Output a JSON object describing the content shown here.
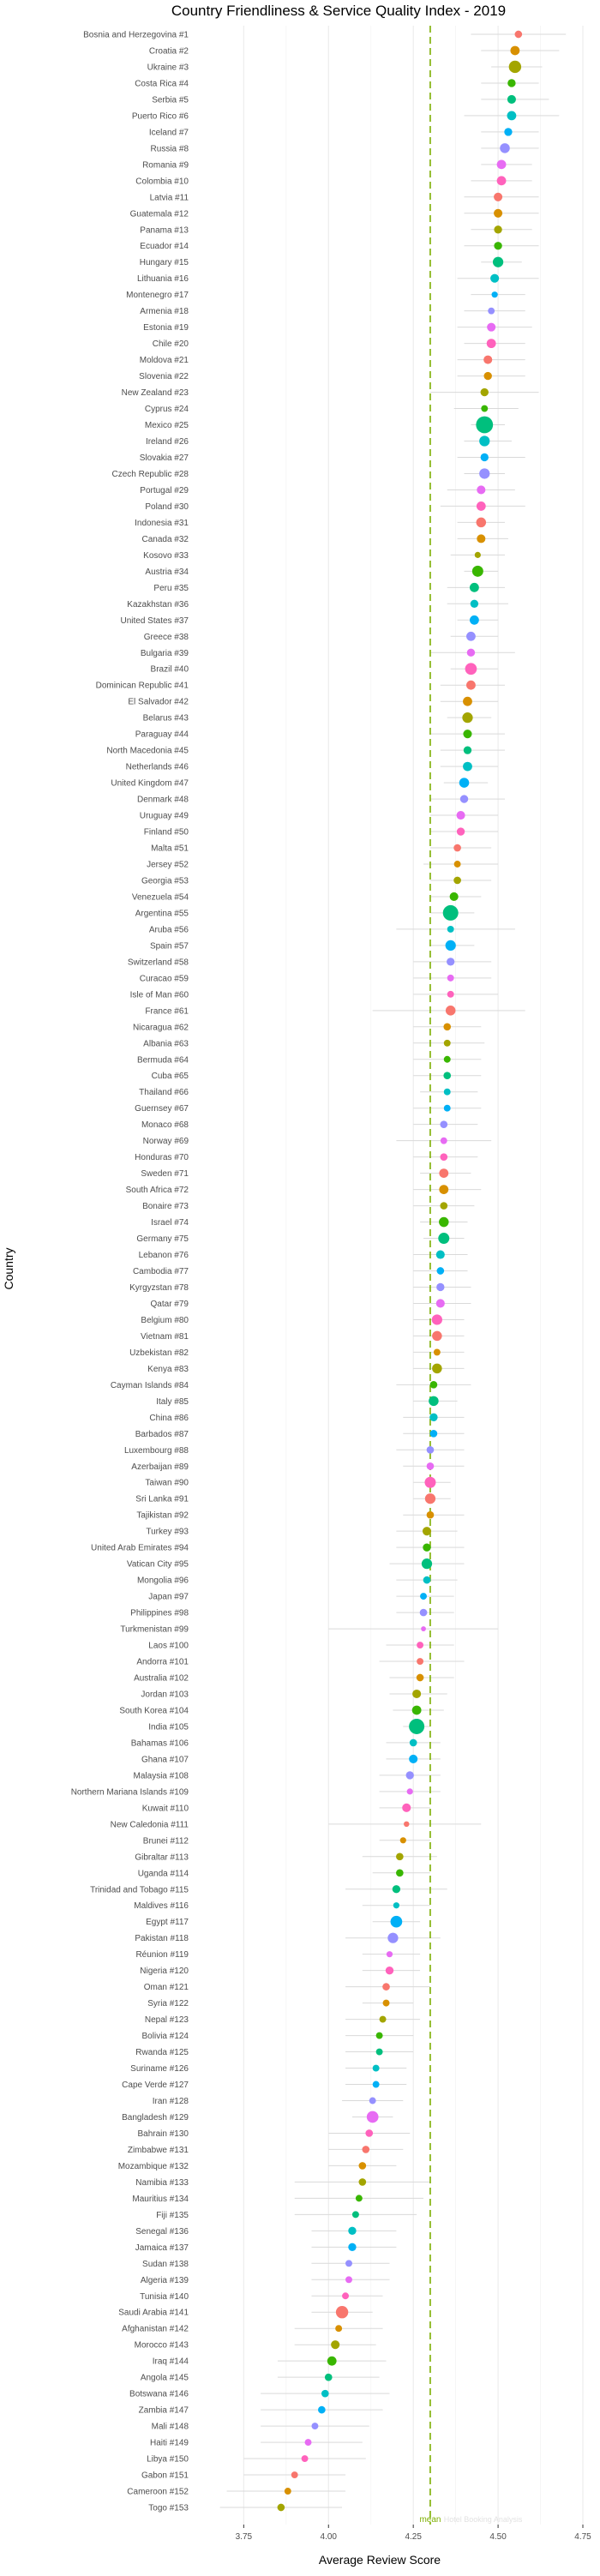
{
  "chart_data": {
    "type": "scatter",
    "title": "Country Friendliness & Service Quality Index - 2019",
    "xlabel": "Average Review Score",
    "ylabel": "Country",
    "xlim": [
      3.6,
      4.75
    ],
    "xticks": [
      3.75,
      4.0,
      4.25,
      4.5,
      4.75
    ],
    "xtick_labels": [
      "3.75",
      "4.00",
      "4.25",
      "4.50",
      "4.75"
    ],
    "grid": true,
    "mean_line": {
      "label": "mean",
      "x": 4.3,
      "color": "#7CAE00"
    },
    "watermark": "Hotel Booking Analysis",
    "palette": [
      "#F8766D",
      "#D89000",
      "#A3A500",
      "#39B600",
      "#00BF7D",
      "#00BFC4",
      "#00B0F6",
      "#9590FF",
      "#E76BF3",
      "#FF62BC"
    ],
    "countries": [
      "Bosnia and Herzegovina #1",
      "Croatia #2",
      "Ukraine #3",
      "Costa Rica #4",
      "Serbia #5",
      "Puerto Rico #6",
      "Iceland #7",
      "Russia #8",
      "Romania #9",
      "Colombia #10",
      "Latvia #11",
      "Guatemala #12",
      "Panama #13",
      "Ecuador #14",
      "Hungary #15",
      "Lithuania #16",
      "Montenegro #17",
      "Armenia #18",
      "Estonia #19",
      "Chile #20",
      "Moldova #21",
      "Slovenia #22",
      "New Zealand #23",
      "Cyprus #24",
      "Mexico #25",
      "Ireland #26",
      "Slovakia #27",
      "Czech Republic #28",
      "Portugal #29",
      "Poland #30",
      "Indonesia #31",
      "Canada #32",
      "Kosovo #33",
      "Austria #34",
      "Peru #35",
      "Kazakhstan #36",
      "United States #37",
      "Greece #38",
      "Bulgaria #39",
      "Brazil #40",
      "Dominican Republic #41",
      "El Salvador #42",
      "Belarus #43",
      "Paraguay #44",
      "North Macedonia #45",
      "Netherlands #46",
      "United Kingdom #47",
      "Denmark #48",
      "Uruguay #49",
      "Finland #50",
      "Malta #51",
      "Jersey #52",
      "Georgia #53",
      "Venezuela #54",
      "Argentina #55",
      "Aruba #56",
      "Spain #57",
      "Switzerland #58",
      "Curacao #59",
      "Isle of Man #60",
      "France #61",
      "Nicaragua #62",
      "Albania #63",
      "Bermuda #64",
      "Cuba #65",
      "Thailand #66",
      "Guernsey #67",
      "Monaco #68",
      "Norway #69",
      "Honduras #70",
      "Sweden #71",
      "South Africa #72",
      "Bonaire #73",
      "Israel #74",
      "Germany #75",
      "Lebanon #76",
      "Cambodia #77",
      "Kyrgyzstan #78",
      "Qatar #79",
      "Belgium #80",
      "Vietnam #81",
      "Uzbekistan #82",
      "Kenya #83",
      "Cayman Islands #84",
      "Italy #85",
      "China #86",
      "Barbados #87",
      "Luxembourg #88",
      "Azerbaijan #89",
      "Taiwan #90",
      "Sri Lanka #91",
      "Tajikistan #92",
      "Turkey #93",
      "United Arab Emirates #94",
      "Vatican City #95",
      "Mongolia #96",
      "Japan #97",
      "Philippines #98",
      "Turkmenistan #99",
      "Laos #100",
      "Andorra #101",
      "Australia #102",
      "Jordan #103",
      "South Korea #104",
      "India #105",
      "Bahamas #106",
      "Ghana #107",
      "Malaysia #108",
      "Northern Mariana Islands #109",
      "Kuwait #110",
      "New Caledonia #111",
      "Brunei #112",
      "Gibraltar #113",
      "Uganda #114",
      "Trinidad and Tobago #115",
      "Maldives #116",
      "Egypt #117",
      "Pakistan #118",
      "Réunion #119",
      "Nigeria #120",
      "Oman #121",
      "Syria #122",
      "Nepal #123",
      "Bolivia #124",
      "Rwanda #125",
      "Suriname #126",
      "Cape Verde #127",
      "Iran #128",
      "Bangladesh #129",
      "Bahrain #130",
      "Zimbabwe #131",
      "Mozambique #132",
      "Namibia #133",
      "Mauritius #134",
      "Fiji #135",
      "Senegal #136",
      "Jamaica #137",
      "Sudan #138",
      "Algeria #139",
      "Tunisia #140",
      "Saudi Arabia #141",
      "Afghanistan #142",
      "Morocco #143",
      "Iraq #144",
      "Angola #145",
      "Botswana #146",
      "Zambia #147",
      "Mali #148",
      "Haiti #149",
      "Libya #150",
      "Gabon #151",
      "Cameroon #152",
      "Togo #153"
    ],
    "scores": [
      4.56,
      4.55,
      4.55,
      4.54,
      4.54,
      4.54,
      4.53,
      4.52,
      4.51,
      4.51,
      4.5,
      4.5,
      4.5,
      4.5,
      4.5,
      4.49,
      4.49,
      4.48,
      4.48,
      4.48,
      4.47,
      4.47,
      4.46,
      4.46,
      4.46,
      4.46,
      4.46,
      4.46,
      4.45,
      4.45,
      4.45,
      4.45,
      4.44,
      4.44,
      4.43,
      4.43,
      4.43,
      4.42,
      4.42,
      4.42,
      4.42,
      4.41,
      4.41,
      4.41,
      4.41,
      4.41,
      4.4,
      4.4,
      4.39,
      4.39,
      4.38,
      4.38,
      4.38,
      4.37,
      4.36,
      4.36,
      4.36,
      4.36,
      4.36,
      4.36,
      4.36,
      4.35,
      4.35,
      4.35,
      4.35,
      4.35,
      4.35,
      4.34,
      4.34,
      4.34,
      4.34,
      4.34,
      4.34,
      4.34,
      4.34,
      4.33,
      4.33,
      4.33,
      4.33,
      4.32,
      4.32,
      4.32,
      4.32,
      4.31,
      4.31,
      4.31,
      4.31,
      4.3,
      4.3,
      4.3,
      4.3,
      4.3,
      4.29,
      4.29,
      4.29,
      4.29,
      4.28,
      4.28,
      4.28,
      4.27,
      4.27,
      4.27,
      4.26,
      4.26,
      4.26,
      4.25,
      4.25,
      4.24,
      4.24,
      4.23,
      4.23,
      4.22,
      4.21,
      4.21,
      4.2,
      4.2,
      4.2,
      4.19,
      4.18,
      4.18,
      4.17,
      4.17,
      4.16,
      4.15,
      4.15,
      4.14,
      4.14,
      4.13,
      4.13,
      4.12,
      4.11,
      4.1,
      4.1,
      4.09,
      4.08,
      4.07,
      4.07,
      4.06,
      4.06,
      4.05,
      4.04,
      4.03,
      4.02,
      4.01,
      4.0,
      3.99,
      3.98,
      3.96,
      3.94,
      3.93,
      3.9,
      3.88,
      3.86
    ],
    "ci_low": [
      4.42,
      4.45,
      4.48,
      4.45,
      4.45,
      4.4,
      4.45,
      4.45,
      4.45,
      4.42,
      4.4,
      4.4,
      4.42,
      4.4,
      4.45,
      4.38,
      4.42,
      4.4,
      4.38,
      4.4,
      4.38,
      4.38,
      4.3,
      4.37,
      4.42,
      4.4,
      4.38,
      4.4,
      4.35,
      4.33,
      4.38,
      4.38,
      4.36,
      4.4,
      4.35,
      4.35,
      4.38,
      4.36,
      4.3,
      4.36,
      4.33,
      4.33,
      4.35,
      4.3,
      4.33,
      4.33,
      4.34,
      4.3,
      4.3,
      4.3,
      4.3,
      4.28,
      4.3,
      4.3,
      4.3,
      4.2,
      4.3,
      4.25,
      4.25,
      4.25,
      4.13,
      4.25,
      4.25,
      4.25,
      4.25,
      4.27,
      4.25,
      4.25,
      4.2,
      4.25,
      4.27,
      4.25,
      4.25,
      4.27,
      4.28,
      4.25,
      4.25,
      4.25,
      4.25,
      4.25,
      4.25,
      4.25,
      4.25,
      4.2,
      4.25,
      4.22,
      4.22,
      4.2,
      4.22,
      4.25,
      4.25,
      4.22,
      4.2,
      4.2,
      4.18,
      4.2,
      4.2,
      4.2,
      4.0,
      4.17,
      4.15,
      4.18,
      4.18,
      4.19,
      4.22,
      4.17,
      4.17,
      4.15,
      4.15,
      4.15,
      4.0,
      4.15,
      4.1,
      4.13,
      4.05,
      4.1,
      4.13,
      4.05,
      4.1,
      4.1,
      4.05,
      4.1,
      4.05,
      4.05,
      4.05,
      4.05,
      4.05,
      4.04,
      4.07,
      4.0,
      4.0,
      4.0,
      3.9,
      3.9,
      3.9,
      3.95,
      3.95,
      3.95,
      3.95,
      3.95,
      3.95,
      3.9,
      3.9,
      3.85,
      3.85,
      3.8,
      3.8,
      3.8,
      3.8,
      3.75,
      3.75,
      3.7,
      3.68
    ],
    "ci_high": [
      4.7,
      4.68,
      4.63,
      4.62,
      4.65,
      4.68,
      4.62,
      4.62,
      4.6,
      4.6,
      4.62,
      4.62,
      4.6,
      4.62,
      4.57,
      4.62,
      4.58,
      4.58,
      4.6,
      4.58,
      4.58,
      4.58,
      4.62,
      4.56,
      4.52,
      4.54,
      4.58,
      4.52,
      4.55,
      4.58,
      4.52,
      4.53,
      4.52,
      4.5,
      4.52,
      4.53,
      4.5,
      4.5,
      4.55,
      4.5,
      4.52,
      4.5,
      4.48,
      4.52,
      4.52,
      4.5,
      4.47,
      4.52,
      4.5,
      4.5,
      4.48,
      4.5,
      4.48,
      4.45,
      4.43,
      4.55,
      4.43,
      4.48,
      4.48,
      4.5,
      4.58,
      4.45,
      4.46,
      4.45,
      4.45,
      4.44,
      4.45,
      4.44,
      4.48,
      4.44,
      4.42,
      4.45,
      4.43,
      4.41,
      4.4,
      4.41,
      4.41,
      4.42,
      4.42,
      4.4,
      4.4,
      4.4,
      4.4,
      4.42,
      4.38,
      4.4,
      4.4,
      4.4,
      4.4,
      4.36,
      4.36,
      4.4,
      4.38,
      4.4,
      4.4,
      4.38,
      4.37,
      4.37,
      4.5,
      4.37,
      4.4,
      4.37,
      4.35,
      4.34,
      4.3,
      4.33,
      4.33,
      4.33,
      4.33,
      4.3,
      4.45,
      4.3,
      4.32,
      4.3,
      4.35,
      4.3,
      4.27,
      4.33,
      4.27,
      4.27,
      4.3,
      4.25,
      4.27,
      4.25,
      4.25,
      4.23,
      4.23,
      4.22,
      4.19,
      4.24,
      4.22,
      4.2,
      4.3,
      4.28,
      4.26,
      4.2,
      4.2,
      4.18,
      4.18,
      4.16,
      4.13,
      4.16,
      4.14,
      4.17,
      4.15,
      4.18,
      4.16,
      4.12,
      4.1,
      4.11,
      4.05,
      4.05,
      4.04
    ],
    "sizes": [
      2.4,
      3.0,
      4.0,
      2.6,
      2.8,
      3.0,
      2.6,
      3.2,
      3.0,
      3.0,
      2.8,
      2.8,
      2.6,
      2.6,
      3.4,
      2.8,
      2.0,
      2.2,
      2.8,
      3.0,
      2.8,
      2.6,
      2.6,
      2.2,
      5.5,
      3.4,
      2.6,
      3.4,
      2.8,
      3.0,
      3.2,
      2.8,
      2.0,
      3.6,
      3.0,
      2.6,
      3.0,
      3.0,
      2.6,
      3.8,
      3.0,
      3.0,
      3.4,
      2.8,
      2.6,
      3.0,
      3.2,
      2.6,
      2.8,
      2.6,
      2.4,
      2.2,
      2.4,
      2.8,
      5.0,
      2.2,
      3.4,
      2.6,
      2.2,
      2.2,
      3.2,
      2.4,
      2.2,
      2.2,
      2.4,
      2.2,
      2.2,
      2.4,
      2.2,
      2.4,
      3.0,
      3.0,
      2.4,
      3.2,
      3.6,
      2.8,
      2.4,
      2.6,
      2.8,
      3.4,
      3.2,
      2.2,
      3.2,
      2.4,
      3.2,
      2.6,
      2.4,
      2.4,
      2.4,
      3.6,
      3.4,
      2.4,
      2.8,
      2.6,
      3.4,
      2.4,
      2.2,
      2.4,
      1.6,
      2.2,
      2.2,
      2.4,
      2.8,
      3.0,
      5.0,
      2.4,
      2.8,
      2.6,
      2.0,
      2.8,
      1.8,
      2.0,
      2.4,
      2.4,
      2.6,
      2.0,
      3.8,
      3.4,
      2.0,
      2.6,
      2.4,
      2.2,
      2.2,
      2.2,
      2.2,
      2.2,
      2.2,
      2.2,
      3.8,
      2.4,
      2.4,
      2.4,
      2.4,
      2.2,
      2.2,
      2.6,
      2.6,
      2.2,
      2.2,
      2.2,
      4.0,
      2.2,
      2.8,
      3.0,
      2.4,
      2.4,
      2.4,
      2.2,
      2.2,
      2.2,
      2.2,
      2.2,
      2.4
    ]
  }
}
